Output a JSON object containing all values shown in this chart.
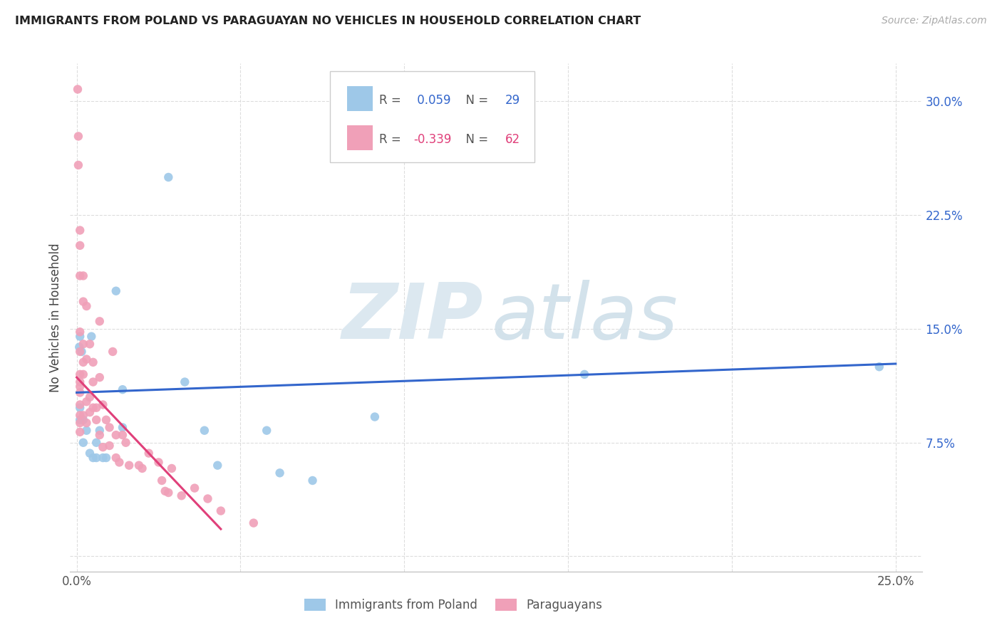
{
  "title": "IMMIGRANTS FROM POLAND VS PARAGUAYAN NO VEHICLES IN HOUSEHOLD CORRELATION CHART",
  "source": "Source: ZipAtlas.com",
  "ylabel": "No Vehicles in Household",
  "yticks": [
    0.0,
    0.075,
    0.15,
    0.225,
    0.3
  ],
  "ytick_labels": [
    "",
    "7.5%",
    "15.0%",
    "22.5%",
    "30.0%"
  ],
  "xlim": [
    -0.002,
    0.258
  ],
  "ylim": [
    -0.01,
    0.325
  ],
  "watermark_zip": "ZIP",
  "watermark_atlas": "atlas",
  "background_color": "#ffffff",
  "grid_color": "#dddddd",
  "blue_color": "#9ec8e8",
  "pink_color": "#f0a0b8",
  "blue_line_color": "#3366cc",
  "pink_line_color": "#e0407a",
  "scatter_size": 80,
  "blue_points_x": [
    0.0008,
    0.001,
    0.001,
    0.001,
    0.0015,
    0.002,
    0.002,
    0.003,
    0.004,
    0.0045,
    0.005,
    0.006,
    0.006,
    0.007,
    0.008,
    0.009,
    0.012,
    0.014,
    0.014,
    0.028,
    0.033,
    0.039,
    0.043,
    0.058,
    0.062,
    0.072,
    0.091,
    0.155,
    0.245
  ],
  "blue_points_y": [
    0.138,
    0.145,
    0.098,
    0.09,
    0.135,
    0.09,
    0.075,
    0.083,
    0.068,
    0.145,
    0.065,
    0.075,
    0.065,
    0.083,
    0.065,
    0.065,
    0.175,
    0.11,
    0.085,
    0.25,
    0.115,
    0.083,
    0.06,
    0.083,
    0.055,
    0.05,
    0.092,
    0.12,
    0.125
  ],
  "pink_points_x": [
    0.0003,
    0.0005,
    0.0005,
    0.001,
    0.001,
    0.001,
    0.001,
    0.001,
    0.001,
    0.001,
    0.001,
    0.001,
    0.001,
    0.001,
    0.001,
    0.001,
    0.002,
    0.002,
    0.002,
    0.002,
    0.002,
    0.002,
    0.003,
    0.003,
    0.003,
    0.003,
    0.004,
    0.004,
    0.004,
    0.005,
    0.005,
    0.005,
    0.006,
    0.006,
    0.007,
    0.007,
    0.007,
    0.008,
    0.008,
    0.009,
    0.01,
    0.01,
    0.011,
    0.012,
    0.012,
    0.013,
    0.014,
    0.015,
    0.016,
    0.019,
    0.02,
    0.022,
    0.025,
    0.026,
    0.027,
    0.028,
    0.029,
    0.032,
    0.036,
    0.04,
    0.044,
    0.054
  ],
  "pink_points_y": [
    0.308,
    0.277,
    0.258,
    0.215,
    0.205,
    0.185,
    0.148,
    0.135,
    0.12,
    0.115,
    0.112,
    0.108,
    0.1,
    0.093,
    0.088,
    0.082,
    0.185,
    0.168,
    0.14,
    0.128,
    0.12,
    0.093,
    0.165,
    0.13,
    0.102,
    0.088,
    0.14,
    0.105,
    0.095,
    0.128,
    0.115,
    0.098,
    0.098,
    0.09,
    0.155,
    0.118,
    0.08,
    0.1,
    0.072,
    0.09,
    0.085,
    0.073,
    0.135,
    0.08,
    0.065,
    0.062,
    0.08,
    0.075,
    0.06,
    0.06,
    0.058,
    0.068,
    0.062,
    0.05,
    0.043,
    0.042,
    0.058,
    0.04,
    0.045,
    0.038,
    0.03,
    0.022
  ],
  "blue_trend_x": [
    0.0,
    0.25
  ],
  "blue_trend_y": [
    0.108,
    0.127
  ],
  "pink_trend_x": [
    0.0,
    0.044
  ],
  "pink_trend_y": [
    0.118,
    0.018
  ],
  "legend_r1_val": "0.059",
  "legend_n1_val": "29",
  "legend_r2_val": "-0.339",
  "legend_n2_val": "62",
  "r_color": "#3366cc",
  "n_color": "#3366cc",
  "r2_color": "#e0407a",
  "legend_label1": "Immigrants from Poland",
  "legend_label2": "Paraguayans"
}
